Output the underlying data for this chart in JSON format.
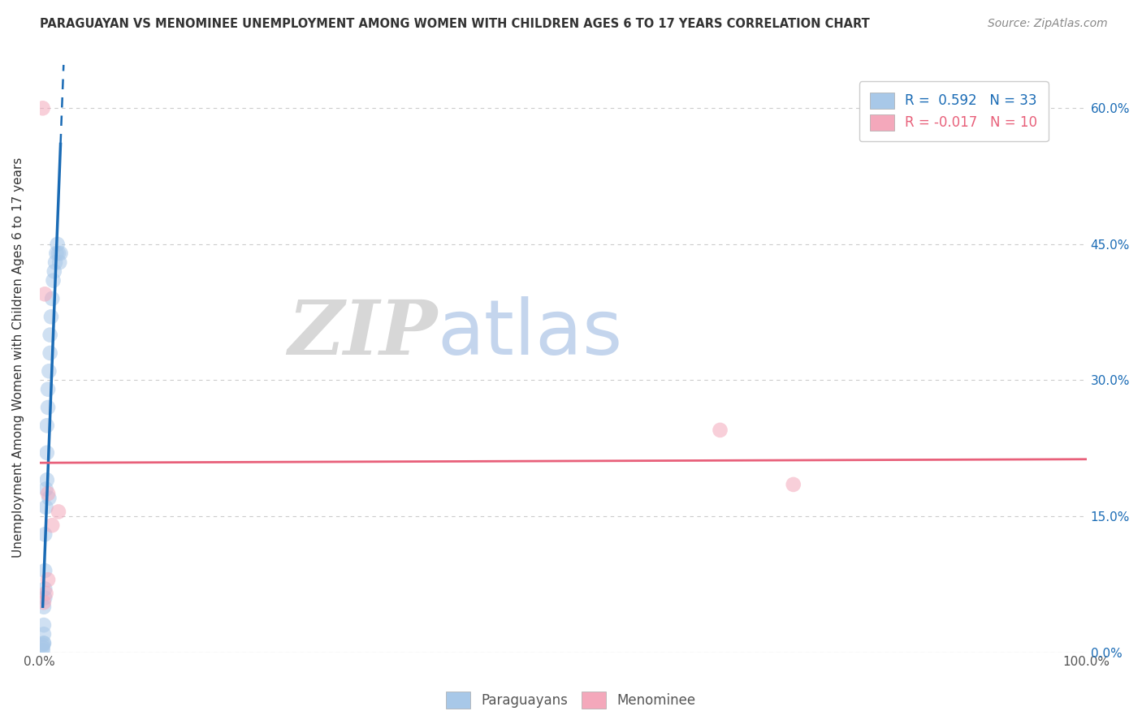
{
  "title": "PARAGUAYAN VS MENOMINEE UNEMPLOYMENT AMONG WOMEN WITH CHILDREN AGES 6 TO 17 YEARS CORRELATION CHART",
  "source": "Source: ZipAtlas.com",
  "ylabel": "Unemployment Among Women with Children Ages 6 to 17 years",
  "xlim": [
    0,
    1.0
  ],
  "ylim": [
    0,
    0.65
  ],
  "xticks": [
    0.0,
    0.1,
    0.2,
    0.3,
    0.4,
    0.5,
    0.6,
    0.7,
    0.8,
    0.9,
    1.0
  ],
  "xticklabels": [
    "0.0%",
    "",
    "",
    "",
    "",
    "",
    "",
    "",
    "",
    "",
    "100.0%"
  ],
  "yticks": [
    0.0,
    0.15,
    0.3,
    0.45,
    0.6
  ],
  "yticklabels_right": [
    "0.0%",
    "15.0%",
    "30.0%",
    "45.0%",
    "60.0%"
  ],
  "blue_scatter_x": [
    0.003,
    0.003,
    0.003,
    0.004,
    0.004,
    0.004,
    0.004,
    0.004,
    0.005,
    0.005,
    0.005,
    0.005,
    0.006,
    0.006,
    0.007,
    0.007,
    0.007,
    0.008,
    0.008,
    0.009,
    0.009,
    0.01,
    0.01,
    0.011,
    0.012,
    0.013,
    0.014,
    0.015,
    0.016,
    0.017,
    0.018,
    0.019,
    0.02
  ],
  "blue_scatter_y": [
    0.002,
    0.005,
    0.008,
    0.01,
    0.01,
    0.02,
    0.03,
    0.05,
    0.06,
    0.07,
    0.09,
    0.13,
    0.16,
    0.18,
    0.19,
    0.22,
    0.25,
    0.27,
    0.29,
    0.31,
    0.17,
    0.33,
    0.35,
    0.37,
    0.39,
    0.41,
    0.42,
    0.43,
    0.44,
    0.45,
    0.44,
    0.43,
    0.44
  ],
  "pink_scatter_x": [
    0.003,
    0.005,
    0.008,
    0.012,
    0.018,
    0.65,
    0.72,
    0.004,
    0.006,
    0.008
  ],
  "pink_scatter_y": [
    0.6,
    0.395,
    0.175,
    0.14,
    0.155,
    0.245,
    0.185,
    0.055,
    0.065,
    0.08
  ],
  "blue_R": 0.592,
  "blue_N": 33,
  "pink_R": -0.017,
  "pink_N": 10,
  "blue_color": "#a8c8e8",
  "pink_color": "#f4a8bb",
  "blue_line_color": "#1a6bb5",
  "pink_line_color": "#e8607a",
  "legend_blue_label": "Paraguayans",
  "legend_pink_label": "Menominee",
  "background_color": "#ffffff",
  "watermark_zip": "ZIP",
  "watermark_atlas": "atlas",
  "watermark_zip_color": "#d0d0d0",
  "watermark_atlas_color": "#b0c8e8"
}
